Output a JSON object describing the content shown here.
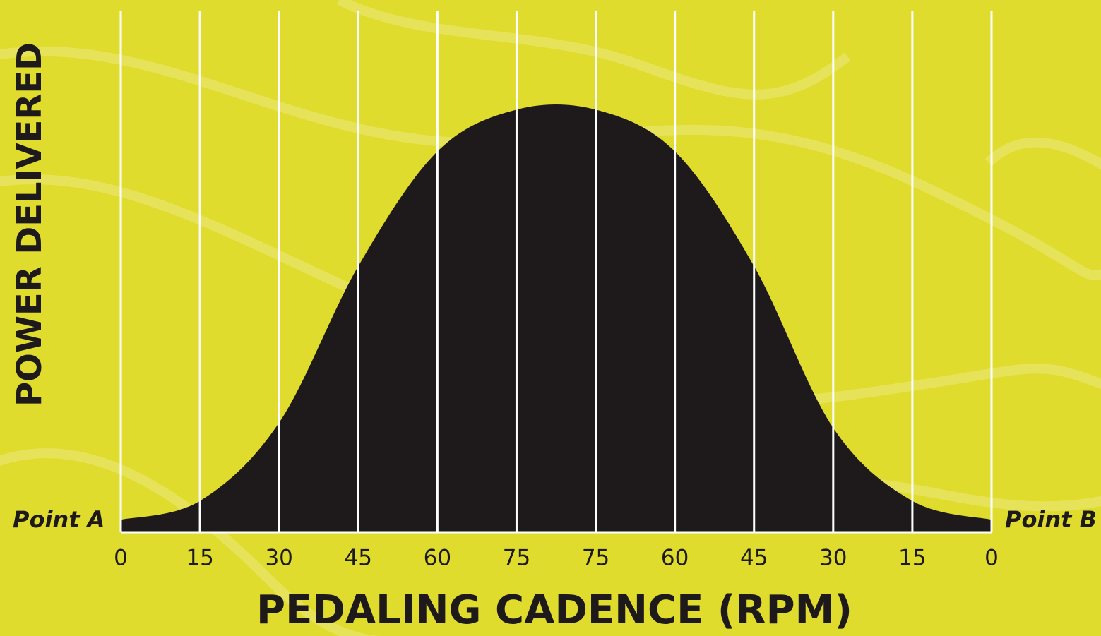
{
  "chart_data": {
    "type": "area",
    "x_label": "PEDALING CADENCE (RPM)",
    "y_label": "POWER DELIVERED",
    "categories": [
      "0",
      "15",
      "30",
      "45",
      "60",
      "75",
      "75",
      "60",
      "45",
      "30",
      "15",
      "0"
    ],
    "values": [
      2.4,
      6,
      21,
      51,
      73,
      81,
      81,
      73,
      51,
      20,
      6,
      2.4
    ],
    "ylim": [
      0,
      100
    ],
    "color": "#1e1a1b",
    "grid_color": "#ffffff",
    "background": "#dfdc2e",
    "annotations": [
      {
        "text": "Point A",
        "side": "left"
      },
      {
        "text": "Point B",
        "side": "right"
      }
    ]
  }
}
